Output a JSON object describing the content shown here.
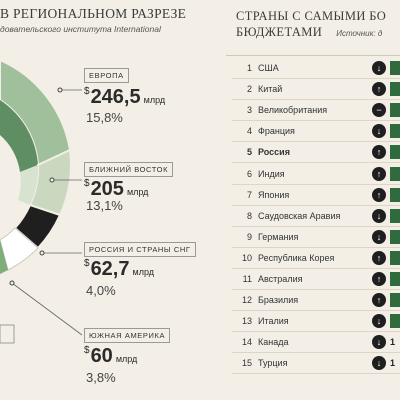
{
  "left": {
    "title": "В РЕГИОНАЛЬНОМ РАЗРЕЗЕ",
    "subtitle": "довательского института International",
    "regions": [
      {
        "label": "ЕВРОПА",
        "currency": "$",
        "amount": "246,5",
        "unit": "млрд",
        "pct": "15,8%"
      },
      {
        "label": "БЛИЖНИЙ ВОСТОК",
        "currency": "$",
        "amount": "205",
        "unit": "млрд",
        "pct": "13,1%"
      },
      {
        "label": "РОССИЯ И СТРАНЫ СНГ",
        "currency": "$",
        "amount": "62,7",
        "unit": "млрд",
        "pct": "4,0%"
      },
      {
        "label": "ЮЖНАЯ АМЕРИКА",
        "currency": "$",
        "amount": "60",
        "unit": "млрд",
        "pct": "3,8%"
      }
    ],
    "colors": {
      "europe": "#9fc09a",
      "middle_east": "#c9d8bf",
      "russia": "#1f1f1f",
      "south_america": "#ffffff",
      "accent": "#2f6b3c"
    }
  },
  "right": {
    "title_line1": "СТРАНЫ С САМЫМИ БО",
    "title_line2": "БЮДЖЕТАМИ",
    "source": "Источник: д",
    "rows": [
      {
        "n": "1",
        "country": "США",
        "icon": "arrow-down-icon",
        "glyph": "↓"
      },
      {
        "n": "2",
        "country": "Китай",
        "icon": "arrow-up-icon",
        "glyph": "↑"
      },
      {
        "n": "3",
        "country": "Великобритания",
        "icon": "minus-icon",
        "glyph": "−"
      },
      {
        "n": "4",
        "country": "Франция",
        "icon": "arrow-down-icon",
        "glyph": "↓"
      },
      {
        "n": "5",
        "country": "Россия",
        "icon": "arrow-up-icon",
        "glyph": "↑"
      },
      {
        "n": "6",
        "country": "Индия",
        "icon": "arrow-up-icon",
        "glyph": "↑"
      },
      {
        "n": "7",
        "country": "Япония",
        "icon": "arrow-up-icon",
        "glyph": "↑"
      },
      {
        "n": "8",
        "country": "Саудовская Аравия",
        "icon": "arrow-down-icon",
        "glyph": "↓"
      },
      {
        "n": "9",
        "country": "Германия",
        "icon": "arrow-down-icon",
        "glyph": "↓"
      },
      {
        "n": "10",
        "country": "Республика Корея",
        "icon": "arrow-up-icon",
        "glyph": "↑"
      },
      {
        "n": "11",
        "country": "Австралия",
        "icon": "arrow-up-icon",
        "glyph": "↑"
      },
      {
        "n": "12",
        "country": "Бразилия",
        "icon": "arrow-up-icon",
        "glyph": "↑"
      },
      {
        "n": "13",
        "country": "Италия",
        "icon": "arrow-down-icon",
        "glyph": "↓"
      },
      {
        "n": "14",
        "country": "Канада",
        "icon": "arrow-down-icon",
        "glyph": "↓",
        "tail": "1"
      },
      {
        "n": "15",
        "country": "Турция",
        "icon": "arrow-down-icon",
        "glyph": "↓",
        "tail": "1"
      }
    ]
  }
}
